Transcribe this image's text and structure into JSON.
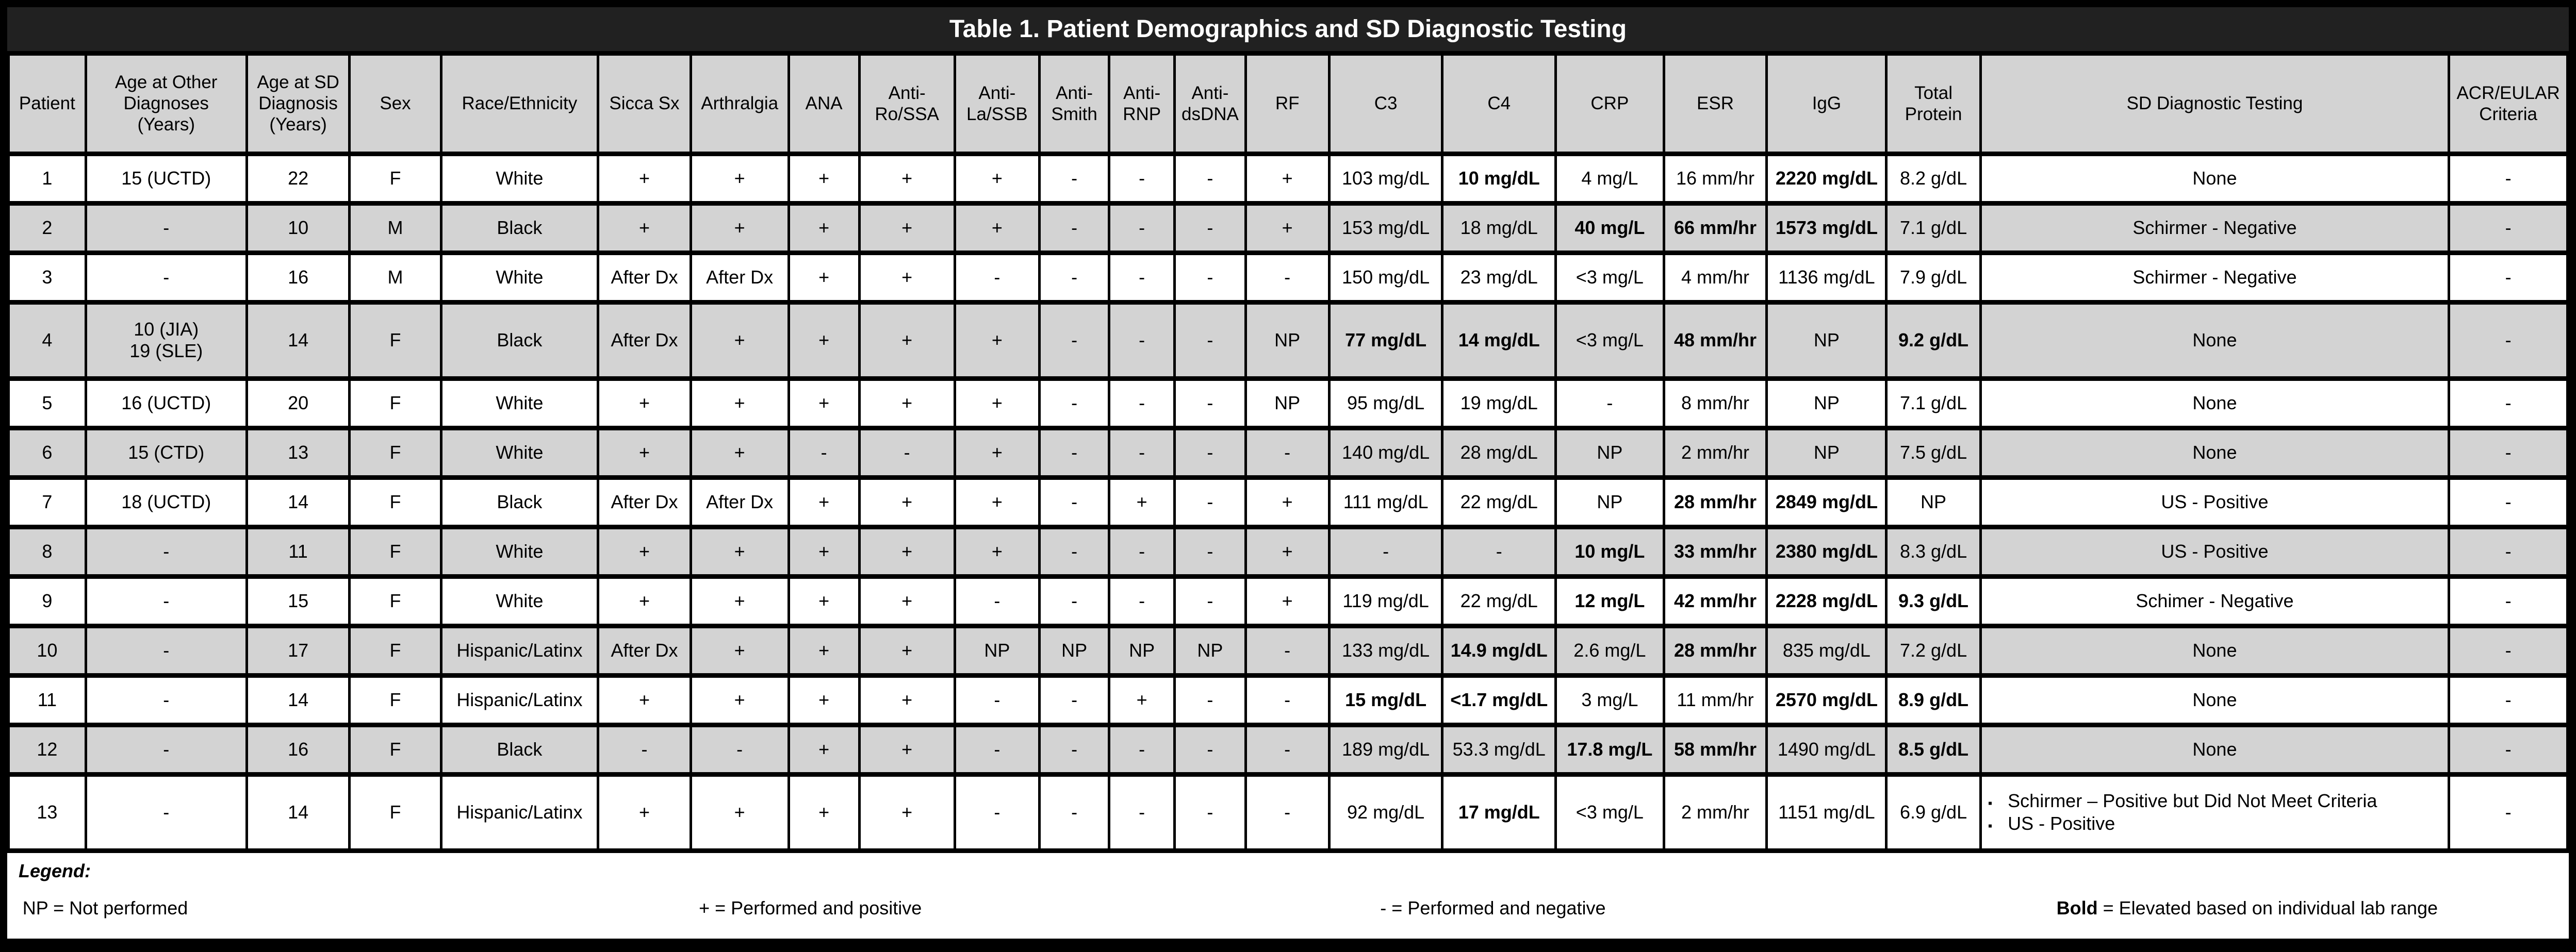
{
  "title": "Table 1. Patient Demographics and SD Diagnostic Testing",
  "colors": {
    "title_bg": "#212121",
    "title_text": "#ffffff",
    "shaded_row": "#d3d3d3",
    "border": "#000000"
  },
  "table": {
    "columns": [
      {
        "key": "patient",
        "label": "Patient",
        "width": 3.0
      },
      {
        "key": "age-other-dx",
        "label": "Age at Other\nDiagnoses\n(Years)",
        "width": 6.25
      },
      {
        "key": "age-sd-dx",
        "label": "Age at SD\nDiagnosis\n(Years)",
        "width": 4.0
      },
      {
        "key": "sex",
        "label": "Sex",
        "width": 3.55
      },
      {
        "key": "race-ethnicity",
        "label": "Race/Ethnicity",
        "width": 6.1
      },
      {
        "key": "sicca-sx",
        "label": "Sicca Sx",
        "width": 3.6
      },
      {
        "key": "arthralgia",
        "label": "Arthralgia",
        "width": 3.8
      },
      {
        "key": "ana",
        "label": "ANA",
        "width": 2.75
      },
      {
        "key": "anti-ro-ssa",
        "label": "Anti-\nRo/SSA",
        "width": 3.7
      },
      {
        "key": "anti-la-ssb",
        "label": "Anti-\nLa/SSB",
        "width": 3.3
      },
      {
        "key": "anti-smith",
        "label": "Anti-\nSmith",
        "width": 2.7
      },
      {
        "key": "anti-rnp",
        "label": "Anti-\nRNP",
        "width": 2.55
      },
      {
        "key": "anti-dsdna",
        "label": "Anti-\ndsDNA",
        "width": 2.75
      },
      {
        "key": "rf",
        "label": "RF",
        "width": 3.25
      },
      {
        "key": "c3",
        "label": "C3",
        "width": 4.4
      },
      {
        "key": "c4",
        "label": "C4",
        "width": 4.4
      },
      {
        "key": "crp",
        "label": "CRP",
        "width": 4.2
      },
      {
        "key": "esr",
        "label": "ESR",
        "width": 4.0
      },
      {
        "key": "igg",
        "label": "IgG",
        "width": 4.65
      },
      {
        "key": "total-protein",
        "label": "Total\nProtein",
        "width": 3.65
      },
      {
        "key": "sd-testing",
        "label": "SD Diagnostic Testing",
        "width": 18.2
      },
      {
        "key": "acr-eular-criteria",
        "label": "ACR/EULAR\nCriteria",
        "width": 4.6
      }
    ],
    "rows": [
      {
        "shaded": false,
        "cells": [
          "1",
          "15 (UCTD)",
          "22",
          "F",
          "White",
          "+",
          "+",
          "+",
          "+",
          "+",
          "-",
          "-",
          "-",
          "+",
          "103 mg/dL",
          {
            "t": "10 mg/dL",
            "bold": true
          },
          "4 mg/L",
          "16 mm/hr",
          {
            "t": "2220 mg/dL",
            "bold": true
          },
          "8.2 g/dL",
          "None",
          "-"
        ]
      },
      {
        "shaded": true,
        "cells": [
          "2",
          "-",
          "10",
          "M",
          "Black",
          "+",
          "+",
          "+",
          "+",
          "+",
          "-",
          "-",
          "-",
          "+",
          "153 mg/dL",
          "18 mg/dL",
          {
            "t": "40 mg/L",
            "bold": true
          },
          {
            "t": "66 mm/hr",
            "bold": true
          },
          {
            "t": "1573 mg/dL",
            "bold": true
          },
          "7.1 g/dL",
          "Schirmer - Negative",
          "-"
        ]
      },
      {
        "shaded": false,
        "cells": [
          "3",
          "-",
          "16",
          "M",
          "White",
          "After Dx",
          "After Dx",
          "+",
          "+",
          "-",
          "-",
          "-",
          "-",
          "-",
          "150 mg/dL",
          "23 mg/dL",
          "<3 mg/L",
          "4 mm/hr",
          "1136 mg/dL",
          "7.9 g/dL",
          "Schirmer - Negative",
          "-"
        ]
      },
      {
        "shaded": true,
        "cells": [
          "4",
          "10 (JIA)\n19 (SLE)",
          "14",
          "F",
          "Black",
          "After Dx",
          "+",
          "+",
          "+",
          "+",
          "-",
          "-",
          "-",
          "NP",
          {
            "t": "77 mg/dL",
            "bold": true
          },
          {
            "t": "14 mg/dL",
            "bold": true
          },
          "<3 mg/L",
          {
            "t": "48 mm/hr",
            "bold": true
          },
          "NP",
          {
            "t": "9.2 g/dL",
            "bold": true
          },
          "None",
          "-"
        ]
      },
      {
        "shaded": false,
        "cells": [
          "5",
          "16 (UCTD)",
          "20",
          "F",
          "White",
          "+",
          "+",
          "+",
          "+",
          "+",
          "-",
          "-",
          "-",
          "NP",
          "95 mg/dL",
          "19 mg/dL",
          "-",
          "8 mm/hr",
          "NP",
          "7.1 g/dL",
          "None",
          "-"
        ]
      },
      {
        "shaded": true,
        "cells": [
          "6",
          "15 (CTD)",
          "13",
          "F",
          "White",
          "+",
          "+",
          "-",
          "-",
          "+",
          "-",
          "-",
          "-",
          "-",
          "140 mg/dL",
          "28 mg/dL",
          "NP",
          "2 mm/hr",
          "NP",
          "7.5 g/dL",
          "None",
          "-"
        ]
      },
      {
        "shaded": false,
        "cells": [
          "7",
          "18 (UCTD)",
          "14",
          "F",
          "Black",
          "After Dx",
          "After Dx",
          "+",
          "+",
          "+",
          "-",
          "+",
          "-",
          "+",
          "111 mg/dL",
          "22 mg/dL",
          "NP",
          {
            "t": "28 mm/hr",
            "bold": true
          },
          {
            "t": "2849 mg/dL",
            "bold": true
          },
          "NP",
          "US - Positive",
          "-"
        ]
      },
      {
        "shaded": true,
        "cells": [
          "8",
          "-",
          "11",
          "F",
          "White",
          "+",
          "+",
          "+",
          "+",
          "+",
          "-",
          "-",
          "-",
          "+",
          "-",
          "-",
          {
            "t": "10 mg/L",
            "bold": true
          },
          {
            "t": "33 mm/hr",
            "bold": true
          },
          {
            "t": "2380 mg/dL",
            "bold": true
          },
          "8.3 g/dL",
          "US - Positive",
          "-"
        ]
      },
      {
        "shaded": false,
        "cells": [
          "9",
          "-",
          "15",
          "F",
          "White",
          "+",
          "+",
          "+",
          "+",
          "-",
          "-",
          "-",
          "-",
          "+",
          "119 mg/dL",
          "22 mg/dL",
          {
            "t": "12 mg/L",
            "bold": true
          },
          {
            "t": "42 mm/hr",
            "bold": true
          },
          {
            "t": "2228 mg/dL",
            "bold": true
          },
          {
            "t": "9.3 g/dL",
            "bold": true
          },
          "Schimer - Negative",
          "-"
        ]
      },
      {
        "shaded": true,
        "cells": [
          "10",
          "-",
          "17",
          "F",
          "Hispanic/Latinx",
          "After Dx",
          "+",
          "+",
          "+",
          "NP",
          "NP",
          "NP",
          "NP",
          "-",
          "133 mg/dL",
          {
            "t": "14.9 mg/dL",
            "bold": true
          },
          "2.6 mg/L",
          {
            "t": "28 mm/hr",
            "bold": true
          },
          "835 mg/dL",
          "7.2 g/dL",
          "None",
          "-"
        ]
      },
      {
        "shaded": false,
        "cells": [
          "11",
          "-",
          "14",
          "F",
          "Hispanic/Latinx",
          "+",
          "+",
          "+",
          "+",
          "-",
          "-",
          "+",
          "-",
          "-",
          {
            "t": "15 mg/dL",
            "bold": true
          },
          {
            "t": "<1.7 mg/dL",
            "bold": true
          },
          "3 mg/L",
          "11 mm/hr",
          {
            "t": "2570 mg/dL",
            "bold": true
          },
          {
            "t": "8.9 g/dL",
            "bold": true
          },
          "None",
          "-"
        ]
      },
      {
        "shaded": true,
        "cells": [
          "12",
          "-",
          "16",
          "F",
          "Black",
          "-",
          "-",
          "+",
          "+",
          "-",
          "-",
          "-",
          "-",
          "-",
          "189 mg/dL",
          "53.3 mg/dL",
          {
            "t": "17.8 mg/L",
            "bold": true
          },
          {
            "t": "58 mm/hr",
            "bold": true
          },
          "1490 mg/dL",
          {
            "t": "8.5 g/dL",
            "bold": true
          },
          "None",
          "-"
        ]
      },
      {
        "shaded": false,
        "cells": [
          "13",
          "-",
          "14",
          "F",
          "Hispanic/Latinx",
          "+",
          "+",
          "+",
          "+",
          "-",
          "-",
          "-",
          "-",
          "-",
          "92 mg/dL",
          {
            "t": "17 mg/dL",
            "bold": true
          },
          "<3 mg/L",
          "2 mm/hr",
          "1151 mg/dL",
          "6.9 g/dL",
          {
            "bullets": [
              "Schirmer – Positive but Did Not Meet Criteria",
              "US - Positive"
            ]
          },
          "-"
        ]
      }
    ]
  },
  "legend": {
    "heading": "Legend:",
    "items": [
      {
        "text": "NP = Not performed",
        "x": 0.6
      },
      {
        "text": "+ = Performed and positive",
        "x": 27.0
      },
      {
        "text": "- = Performed and negative",
        "x": 53.6
      },
      {
        "bold_prefix": "Bold",
        "rest": " = Elevated based on individual lab range",
        "x": 80.0
      }
    ]
  }
}
